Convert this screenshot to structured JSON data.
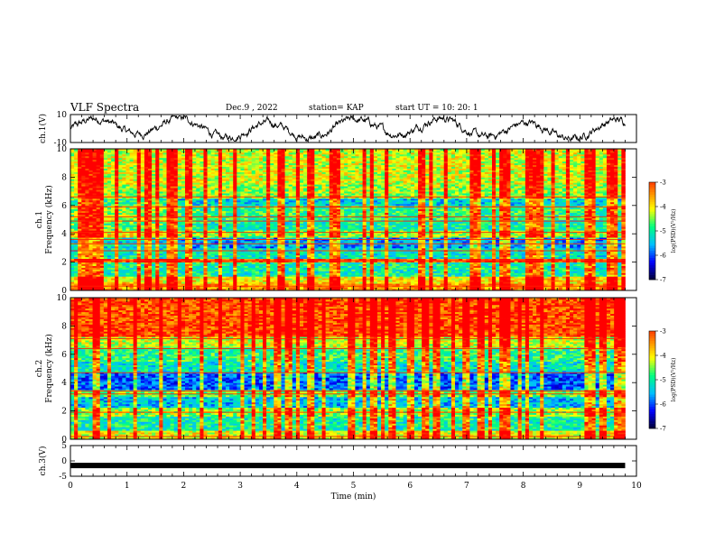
{
  "header": {
    "title": "VLF Spectra",
    "date": "Dec.9 , 2022",
    "station": "station= KAP",
    "start": "start UT = 10: 20: 1"
  },
  "colors": {
    "colormap": [
      "#000033",
      "#0000ff",
      "#00bfff",
      "#00ff80",
      "#ffff00",
      "#ff8000",
      "#ff0000",
      "#ffffff"
    ],
    "waveform": "#000000"
  },
  "chart_data": [
    {
      "type": "line",
      "panel": "ch1-waveform",
      "ylabel": "ch.1(V)",
      "yticks": [
        "10",
        "-10"
      ],
      "ylim": [
        -10,
        10
      ],
      "xlim": [
        0,
        10
      ],
      "note_values": "noisy waveform oscillating roughly between -7 and 7 V across 0 to 9.8 min"
    },
    {
      "type": "heatmap",
      "panel": "ch1-spectrogram",
      "ylabel": "ch.1 Frequency (kHz)",
      "yticks": [
        "0",
        "2",
        "4",
        "6",
        "8",
        "10"
      ],
      "ylim": [
        0,
        10
      ],
      "xlim": [
        0,
        9.8
      ],
      "colorbar": {
        "label": "log(PSD)(V²/Hz)",
        "ticks": [
          "-3",
          "-4",
          "-5",
          "-6",
          "-7"
        ],
        "range": [
          -7,
          -3
        ]
      },
      "bands": [
        {
          "f0": 0.0,
          "f1": 0.5,
          "value": -3.8
        },
        {
          "f0": 0.5,
          "f1": 1.0,
          "value": -4.2
        },
        {
          "f0": 1.0,
          "f1": 2.0,
          "value": -5.2
        },
        {
          "f0": 2.0,
          "f1": 2.3,
          "value": -3.5
        },
        {
          "f0": 2.3,
          "f1": 3.0,
          "value": -5.3
        },
        {
          "f0": 3.0,
          "f1": 3.7,
          "value": -5.8
        },
        {
          "f0": 3.7,
          "f1": 4.2,
          "value": -4.6
        },
        {
          "f0": 4.2,
          "f1": 5.0,
          "value": -5.2
        },
        {
          "f0": 5.0,
          "f1": 6.0,
          "value": -5.0
        },
        {
          "f0": 6.0,
          "f1": 6.5,
          "value": -5.5
        },
        {
          "f0": 6.5,
          "f1": 7.5,
          "value": -4.6
        },
        {
          "f0": 7.5,
          "f1": 10.0,
          "value": -4.4
        }
      ],
      "lines_khz": [
        0.3,
        2.1,
        2.8,
        3.3,
        3.6,
        4.1,
        4.9,
        5.2,
        5.9,
        6.6
      ]
    },
    {
      "type": "heatmap",
      "panel": "ch2-spectrogram",
      "ylabel": "ch.2 Frequency (kHz)",
      "yticks": [
        "0",
        "2",
        "4",
        "6",
        "8",
        "10"
      ],
      "ylim": [
        0,
        10
      ],
      "xlim": [
        0,
        9.8
      ],
      "colorbar": {
        "label": "log(PSD)(V²/Hz)",
        "ticks": [
          "-3",
          "-4",
          "-5",
          "-6",
          "-7"
        ],
        "range": [
          -7,
          -3
        ]
      },
      "bands": [
        {
          "f0": 0.0,
          "f1": 0.6,
          "value": -4.3
        },
        {
          "f0": 0.6,
          "f1": 1.6,
          "value": -5.2
        },
        {
          "f0": 1.6,
          "f1": 2.2,
          "value": -4.6
        },
        {
          "f0": 2.2,
          "f1": 3.0,
          "value": -5.6
        },
        {
          "f0": 3.0,
          "f1": 3.5,
          "value": -4.8
        },
        {
          "f0": 3.5,
          "f1": 4.8,
          "value": -6.0
        },
        {
          "f0": 4.8,
          "f1": 5.5,
          "value": -5.3
        },
        {
          "f0": 5.5,
          "f1": 6.5,
          "value": -5.0
        },
        {
          "f0": 6.5,
          "f1": 7.3,
          "value": -4.4
        },
        {
          "f0": 7.3,
          "f1": 10.0,
          "value": -3.4
        }
      ],
      "lines_khz": [
        0.2,
        1.9,
        3.2,
        3.4,
        4.7,
        6.4,
        7.1
      ]
    },
    {
      "type": "line",
      "panel": "ch3-waveform",
      "ylabel": "ch.3(V)",
      "yticks": [
        "5",
        "0",
        "-5"
      ],
      "ylim": [
        -5,
        5
      ],
      "xlim": [
        0,
        10
      ],
      "constant_value": -1.5,
      "xlabel": "Time (min)",
      "xticks": [
        "0",
        "1",
        "2",
        "3",
        "4",
        "5",
        "6",
        "7",
        "8",
        "9",
        "10"
      ]
    }
  ]
}
